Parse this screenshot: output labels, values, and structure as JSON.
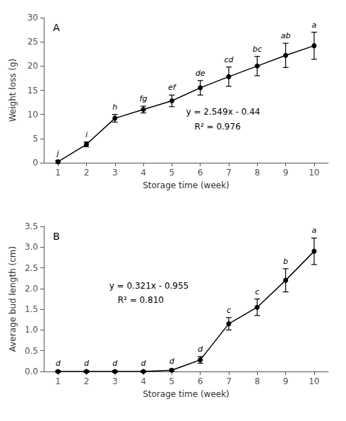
{
  "chart_data": [
    {
      "type": "line",
      "title": "A",
      "x": [
        1,
        2,
        3,
        4,
        5,
        6,
        7,
        8,
        9,
        10
      ],
      "values": [
        0.2,
        3.8,
        9.2,
        11.0,
        12.8,
        15.5,
        17.8,
        20.0,
        22.2,
        24.2
      ],
      "yerr": [
        0.3,
        0.5,
        0.8,
        0.7,
        1.2,
        1.5,
        2.0,
        2.0,
        2.5,
        2.8
      ],
      "labels": [
        "j",
        "i",
        "h",
        "fg",
        "ef",
        "de",
        "cd",
        "bc",
        "ab",
        "a"
      ],
      "annotations": [
        "y = 2.549x - 0.44",
        "R² = 0.976"
      ],
      "xlabel": "Storage time (week)",
      "ylabel": "Weight loss (g)",
      "xlim": [
        0.5,
        10.5
      ],
      "xticks": [
        1,
        2,
        3,
        4,
        5,
        6,
        7,
        8,
        9,
        10
      ],
      "ylim": [
        0,
        30
      ],
      "yticks": [
        0,
        5,
        10,
        15,
        20,
        25,
        30
      ],
      "color": "#000000",
      "marker": "circle",
      "grid": false
    },
    {
      "type": "line",
      "title": "B",
      "x": [
        1,
        2,
        3,
        4,
        5,
        6,
        7,
        8,
        9,
        10
      ],
      "values": [
        0.0,
        0.0,
        0.0,
        0.0,
        0.03,
        0.28,
        1.15,
        1.55,
        2.2,
        2.9
      ],
      "yerr": [
        0.02,
        0.02,
        0.02,
        0.02,
        0.03,
        0.08,
        0.15,
        0.2,
        0.28,
        0.32
      ],
      "labels": [
        "d",
        "d",
        "d",
        "d",
        "d",
        "d",
        "c",
        "c",
        "b",
        "a"
      ],
      "annotations": [
        "y = 0.321x - 0.955",
        "R² = 0.810"
      ],
      "xlabel": "Storage time (week)",
      "ylabel": "Average bud length (cm)",
      "xlim": [
        0.5,
        10.5
      ],
      "xticks": [
        1,
        2,
        3,
        4,
        5,
        6,
        7,
        8,
        9,
        10
      ],
      "ylim": [
        0,
        3.5
      ],
      "yticks": [
        {
          "value": 0,
          "label": "0.0"
        },
        0.5,
        {
          "value": 1,
          "label": "1.0"
        },
        1.5,
        {
          "value": 2,
          "label": "2.0"
        },
        2.5,
        {
          "value": 3,
          "label": "3.0"
        },
        3.5
      ],
      "color": "#000000",
      "marker": "circle",
      "grid": false
    }
  ]
}
